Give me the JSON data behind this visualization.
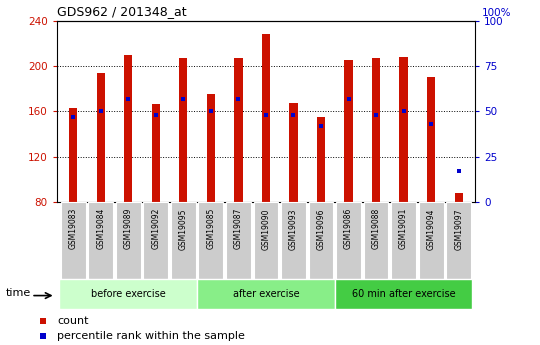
{
  "title": "GDS962 / 201348_at",
  "samples": [
    "GSM19083",
    "GSM19084",
    "GSM19089",
    "GSM19092",
    "GSM19095",
    "GSM19085",
    "GSM19087",
    "GSM19090",
    "GSM19093",
    "GSM19096",
    "GSM19086",
    "GSM19088",
    "GSM19091",
    "GSM19094",
    "GSM19097"
  ],
  "groups": [
    {
      "label": "before exercise",
      "color": "#ccffcc",
      "start": 0,
      "end": 5
    },
    {
      "label": "after exercise",
      "color": "#88ee88",
      "start": 5,
      "end": 10
    },
    {
      "label": "60 min after exercise",
      "color": "#44cc44",
      "start": 10,
      "end": 15
    }
  ],
  "bar_bottom": 80,
  "counts": [
    163,
    194,
    210,
    166,
    207,
    175,
    207,
    228,
    167,
    155,
    205,
    207,
    208,
    190,
    88
  ],
  "percentile_ranks": [
    47,
    50,
    57,
    48,
    57,
    50,
    57,
    48,
    48,
    42,
    57,
    48,
    50,
    43,
    17
  ],
  "ymin": 80,
  "ymax": 240,
  "yticks": [
    80,
    120,
    160,
    200,
    240
  ],
  "y2ticks": [
    0,
    25,
    50,
    75,
    100
  ],
  "bar_color": "#cc1100",
  "dot_color": "#0000cc",
  "ylabel_color": "#cc1100",
  "y2label_color": "#0000cc",
  "grid_color": "#000000",
  "bg_color": "#ffffff",
  "tick_bg": "#cccccc",
  "bar_width": 0.3
}
